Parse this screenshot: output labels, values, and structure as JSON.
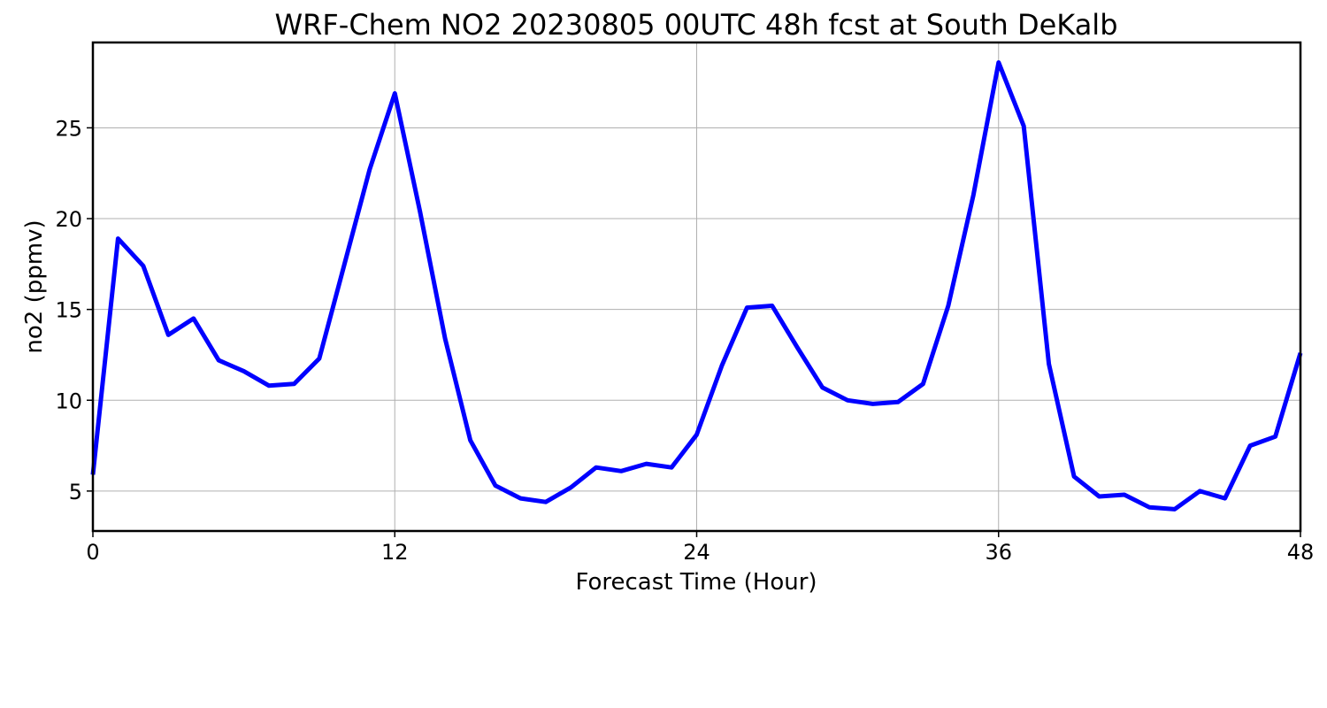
{
  "chart_data": {
    "type": "line",
    "title": "WRF-Chem NO2  20230805 00UTC 48h fcst at South DeKalb",
    "xlabel": "Forecast Time (Hour)",
    "ylabel": "no2  (ppmv)",
    "xlim": [
      0,
      48
    ],
    "ylim": [
      2.8,
      29.7
    ],
    "xticks": [
      0,
      12,
      24,
      36,
      48
    ],
    "yticks": [
      5,
      10,
      15,
      20,
      25
    ],
    "grid": true,
    "line_color": "#0000ff",
    "series": [
      {
        "x": [
          0,
          1,
          2,
          3,
          4,
          5,
          6,
          7,
          8,
          9,
          10,
          11,
          12,
          13,
          14,
          15,
          16,
          17,
          18,
          19,
          20,
          21,
          22,
          23,
          24,
          25,
          26,
          27,
          28,
          29,
          30,
          31,
          32,
          33,
          34,
          35,
          36,
          37,
          38,
          39,
          40,
          41,
          42,
          43,
          44,
          45,
          46,
          47,
          48
        ],
        "values": [
          5.9,
          18.9,
          17.4,
          13.6,
          14.5,
          12.2,
          11.6,
          10.8,
          10.9,
          12.3,
          17.5,
          22.7,
          26.9,
          20.4,
          13.4,
          7.8,
          5.3,
          4.6,
          4.4,
          5.2,
          6.3,
          6.1,
          6.5,
          6.3,
          8.1,
          11.9,
          15.1,
          15.2,
          12.9,
          10.7,
          10.0,
          9.8,
          9.9,
          10.9,
          15.2,
          21.3,
          28.6,
          25.1,
          12.0,
          5.8,
          4.7,
          4.8,
          4.1,
          4.0,
          5.0,
          4.6,
          7.5,
          8.0,
          12.6
        ]
      }
    ]
  }
}
